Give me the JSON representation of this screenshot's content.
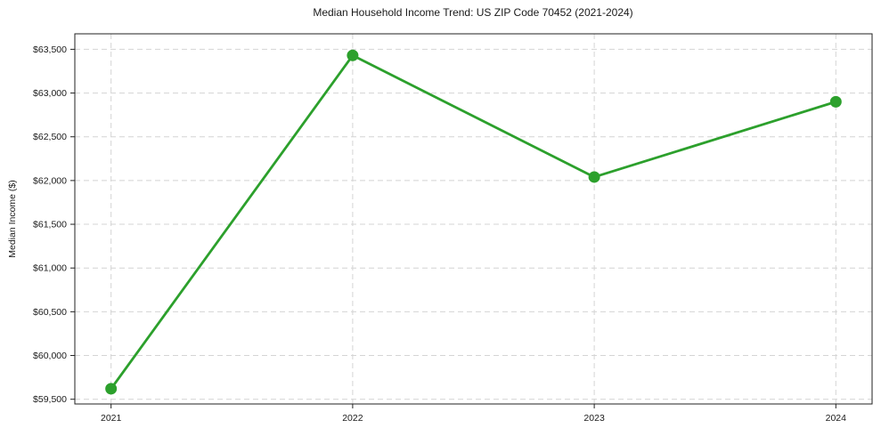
{
  "chart_data": {
    "type": "line",
    "title": "Median Household Income Trend: US ZIP Code 70452 (2021-2024)",
    "xlabel": "",
    "ylabel": "Median Income ($)",
    "categories": [
      "2021",
      "2022",
      "2023",
      "2024"
    ],
    "x": [
      2021,
      2022,
      2023,
      2024
    ],
    "series": [
      {
        "name": "Median Household Income",
        "values": [
          59620,
          63430,
          62040,
          62900
        ],
        "color": "#2ca02c",
        "marker": "circle"
      }
    ],
    "xlim": [
      2020.85,
      2024.15
    ],
    "ylim": [
      59446,
      63677
    ],
    "yticks": [
      59500,
      60000,
      60500,
      61000,
      61500,
      62000,
      62500,
      63000,
      63500
    ],
    "ytick_labels": [
      "$59,500",
      "$60,000",
      "$60,500",
      "$61,000",
      "$61,500",
      "$62,000",
      "$62,500",
      "$63,000",
      "$63,500"
    ],
    "xtick_labels": [
      "2021",
      "2022",
      "2023",
      "2024"
    ],
    "legend": {
      "visible": false
    },
    "grid": {
      "visible": true,
      "style": "dashed",
      "color": "#d4d4d4"
    },
    "colors": {
      "line": "#2ca02c",
      "marker": "#2ca02c",
      "spine": "#222222",
      "tick": "#222222",
      "text": "#1a1a1a",
      "background": "#ffffff"
    }
  }
}
